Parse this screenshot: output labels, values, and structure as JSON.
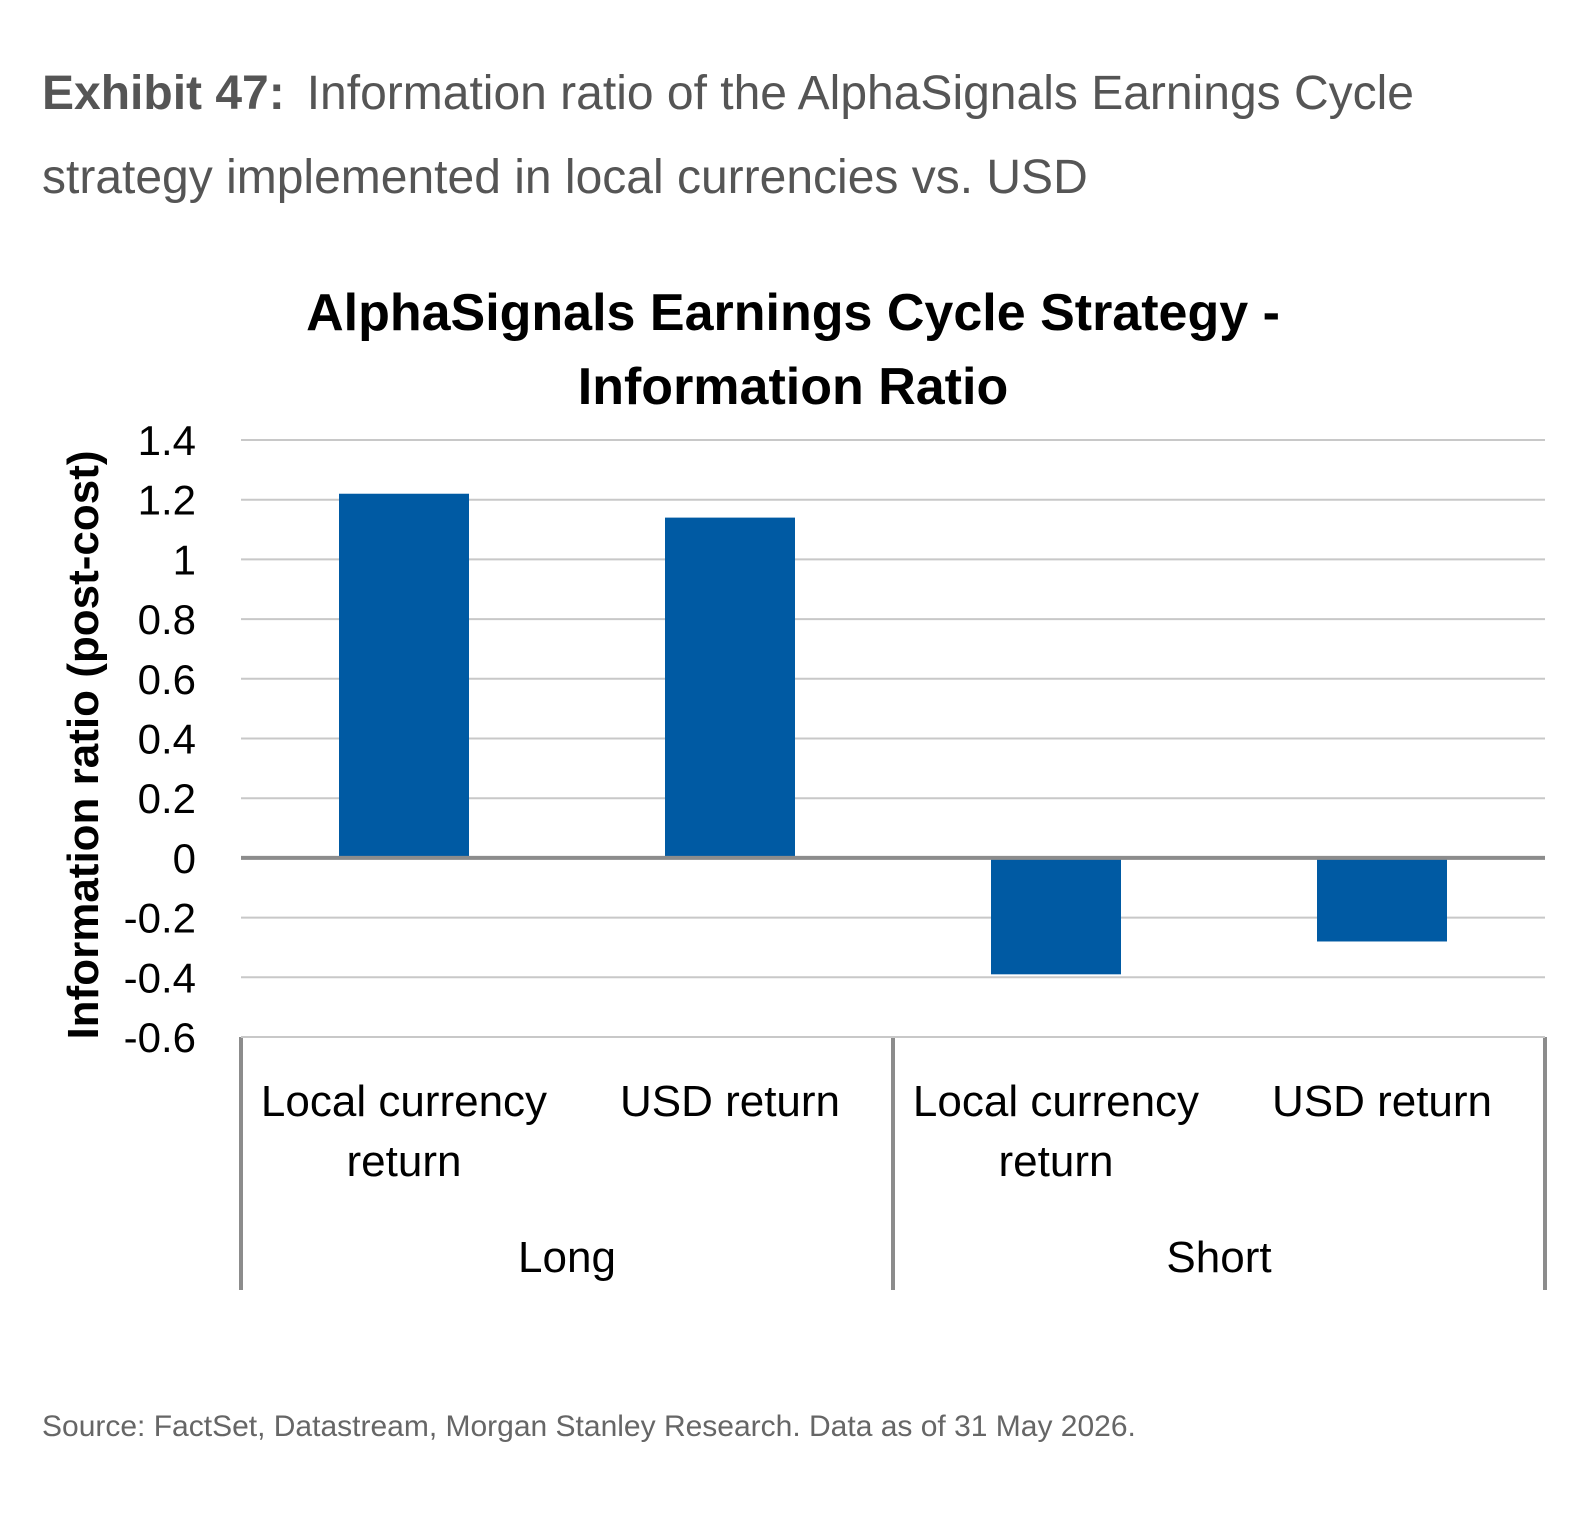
{
  "exhibit": {
    "label": "Exhibit 47:",
    "title": "Information ratio of the AlphaSignals Earnings Cycle strategy implemented in local currencies vs. USD"
  },
  "source": "Source: FactSet, Datastream, Morgan Stanley Research. Data as of 31 May 2026.",
  "chart_data": {
    "type": "bar",
    "title_lines": [
      "AlphaSignals Earnings Cycle Strategy -",
      "Information Ratio"
    ],
    "ylabel": "Information ratio (post-cost)",
    "ylim": [
      -0.6,
      1.4
    ],
    "yticks": [
      1.4,
      1.2,
      1,
      0.8,
      0.6,
      0.4,
      0.2,
      0,
      -0.2,
      -0.4,
      -0.6
    ],
    "categories": [
      {
        "group": "Long",
        "label_lines": [
          "Local currency",
          "return"
        ]
      },
      {
        "group": "Long",
        "label_lines": [
          "USD return"
        ]
      },
      {
        "group": "Short",
        "label_lines": [
          "Local currency",
          "return"
        ]
      },
      {
        "group": "Short",
        "label_lines": [
          "USD return"
        ]
      }
    ],
    "groups": [
      "Long",
      "Short"
    ],
    "values": [
      1.22,
      1.14,
      -0.39,
      -0.28
    ],
    "bar_color": "#005AA3",
    "grid": true,
    "legend": "none"
  }
}
